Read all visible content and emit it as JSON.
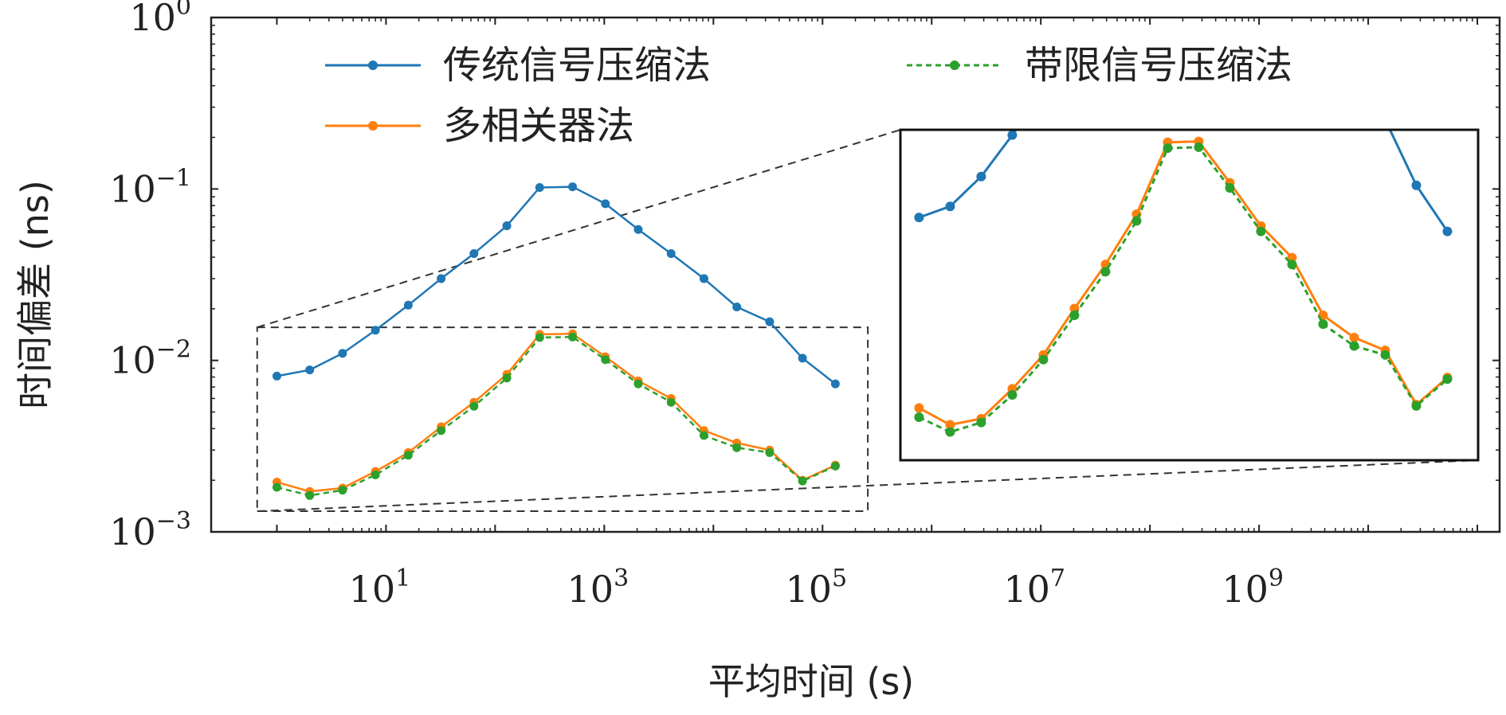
{
  "chart_data": {
    "type": "line",
    "xlabel": "平均时间 (s)",
    "ylabel": "时间偏差 (ns)",
    "xscale": "log",
    "yscale": "log",
    "xlim": [
      0.25,
      160000000000.0
    ],
    "ylim": [
      0.001,
      1
    ],
    "xticks": [
      {
        "value": 10,
        "base": "10",
        "exp": "1"
      },
      {
        "value": 1000,
        "base": "10",
        "exp": "3"
      },
      {
        "value": 100000,
        "base": "10",
        "exp": "5"
      },
      {
        "value": 10000000,
        "base": "10",
        "exp": "7"
      },
      {
        "value": 1000000000,
        "base": "10",
        "exp": "9"
      }
    ],
    "yticks": [
      {
        "value": 0.001,
        "base": "10",
        "exp": "−3"
      },
      {
        "value": 0.01,
        "base": "10",
        "exp": "−2"
      },
      {
        "value": 0.1,
        "base": "10",
        "exp": "−1"
      },
      {
        "value": 1,
        "base": "10",
        "exp": "0"
      }
    ],
    "legend_position": "top",
    "x": [
      1,
      2,
      4,
      8,
      16,
      32,
      64,
      128,
      256,
      512,
      1024,
      2048,
      4096,
      8192,
      16384,
      32768,
      65536,
      131072
    ],
    "series": [
      {
        "name": "传统信号压缩法",
        "color": "#1f77b4",
        "dash": "solid",
        "values": [
          0.0081,
          0.0088,
          0.011,
          0.015,
          0.021,
          0.03,
          0.042,
          0.061,
          0.102,
          0.103,
          0.082,
          0.058,
          0.042,
          0.03,
          0.0205,
          0.0168,
          0.0103,
          0.0073
        ]
      },
      {
        "name": "带限信号压缩法",
        "color": "#2ca02c",
        "dash": "dashed",
        "values": [
          0.00182,
          0.00163,
          0.00175,
          0.00215,
          0.0028,
          0.0039,
          0.0054,
          0.0079,
          0.0136,
          0.0137,
          0.0101,
          0.0073,
          0.0057,
          0.00365,
          0.0031,
          0.0029,
          0.00198,
          0.00242
        ]
      },
      {
        "name": "多相关器法",
        "color": "#ff7f0e",
        "dash": "solid",
        "values": [
          0.00195,
          0.00172,
          0.0018,
          0.00225,
          0.0029,
          0.0041,
          0.0057,
          0.0083,
          0.0142,
          0.0143,
          0.0105,
          0.0076,
          0.006,
          0.0039,
          0.0033,
          0.003,
          0.002,
          0.00245
        ]
      }
    ],
    "inset": {
      "zoom_box": {
        "xlim": [
          0.66,
          260000
        ],
        "ylim": [
          0.00132,
          0.0156
        ]
      },
      "xlim": [
        0.66,
        260000
      ],
      "ylim": [
        0.00132,
        0.0156
      ]
    }
  }
}
